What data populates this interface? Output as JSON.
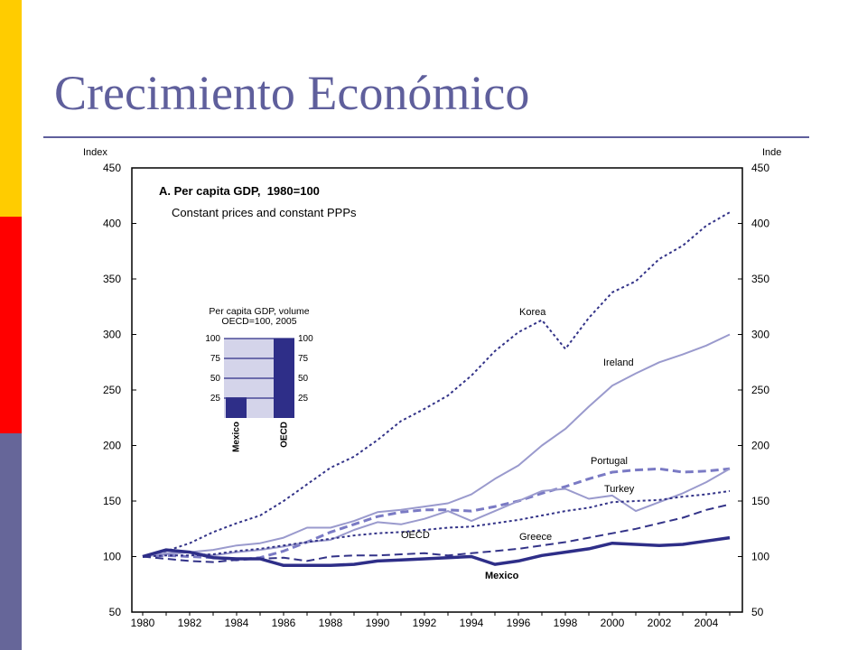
{
  "slide": {
    "title": "Crecimiento Económico",
    "accent_colors": [
      "#ffcc00",
      "#ff0000",
      "#666699"
    ]
  },
  "chart_data": [
    {
      "type": "line",
      "title": "A. Per capita GDP,  1980=100",
      "subtitle": "Constant prices and constant PPPs",
      "ylabel_left": "Index",
      "ylabel_right": "Inde",
      "ylim": [
        50,
        450
      ],
      "yticks": [
        50,
        100,
        150,
        200,
        250,
        300,
        350,
        400,
        450
      ],
      "xlim": [
        1980,
        2005
      ],
      "xticks": [
        1980,
        1982,
        1984,
        1986,
        1988,
        1990,
        1992,
        1994,
        1996,
        1998,
        2000,
        2002,
        2004
      ],
      "grid": false,
      "legend": "inline labels",
      "x": [
        1980,
        1981,
        1982,
        1983,
        1984,
        1985,
        1986,
        1987,
        1988,
        1989,
        1990,
        1991,
        1992,
        1993,
        1994,
        1995,
        1996,
        1997,
        1998,
        1999,
        2000,
        2001,
        2002,
        2003,
        2004,
        2005
      ],
      "series": [
        {
          "name": "Korea",
          "style": "dotted",
          "color": "#333388",
          "width": 2,
          "values": [
            100,
            105,
            112,
            122,
            130,
            137,
            150,
            165,
            180,
            190,
            205,
            222,
            233,
            245,
            263,
            285,
            302,
            313,
            287,
            315,
            338,
            348,
            368,
            380,
            398,
            410
          ]
        },
        {
          "name": "Ireland",
          "style": "solid",
          "color": "#9a9acd",
          "width": 2,
          "values": [
            100,
            102,
            104,
            106,
            110,
            112,
            117,
            126,
            126,
            132,
            140,
            142,
            145,
            148,
            156,
            170,
            182,
            200,
            215,
            235,
            254,
            265,
            275,
            282,
            290,
            300
          ]
        },
        {
          "name": "Portugal",
          "style": "dashed",
          "color": "#7a7ac4",
          "width": 3,
          "values": [
            100,
            101,
            100,
            99,
            97,
            99,
            105,
            113,
            122,
            129,
            136,
            140,
            142,
            142,
            141,
            145,
            150,
            157,
            163,
            170,
            176,
            178,
            179,
            176,
            177,
            179
          ]
        },
        {
          "name": "Turkey",
          "style": "solid",
          "color": "#9a9acd",
          "width": 2,
          "values": [
            100,
            103,
            104,
            101,
            104,
            106,
            109,
            113,
            115,
            124,
            131,
            129,
            134,
            141,
            132,
            141,
            150,
            159,
            161,
            152,
            155,
            141,
            149,
            157,
            167,
            179
          ]
        },
        {
          "name": "OECD",
          "style": "dotted",
          "color": "#333388",
          "width": 2,
          "values": [
            100,
            101,
            101,
            102,
            105,
            107,
            110,
            113,
            116,
            119,
            121,
            122,
            124,
            126,
            127,
            130,
            133,
            137,
            141,
            144,
            149,
            150,
            151,
            154,
            156,
            159
          ]
        },
        {
          "name": "Greece",
          "style": "dashed",
          "color": "#333388",
          "width": 2,
          "values": [
            100,
            98,
            96,
            95,
            97,
            98,
            99,
            96,
            100,
            101,
            101,
            102,
            103,
            101,
            103,
            105,
            107,
            110,
            113,
            117,
            121,
            125,
            130,
            135,
            142,
            147
          ]
        },
        {
          "name": "Mexico",
          "style": "solid",
          "color": "#2e2e88",
          "width": 3.5,
          "values": [
            100,
            106,
            104,
            99,
            98,
            98,
            92,
            92,
            92,
            93,
            96,
            97,
            98,
            99,
            100,
            93,
            96,
            101,
            104,
            107,
            112,
            111,
            110,
            111,
            114,
            117
          ]
        }
      ],
      "annotations": [
        "Korea",
        "Ireland",
        "Portugal",
        "Turkey",
        "OECD",
        "Greece",
        "Mexico"
      ]
    },
    {
      "type": "bar",
      "title": "Per capita GDP, volume\nOECD=100, 2005",
      "categories": [
        "Mexico",
        "OECD"
      ],
      "values": [
        26,
        100
      ],
      "ylim": [
        0,
        100
      ],
      "yticks": [
        25,
        50,
        75,
        100
      ],
      "grid": true
    }
  ]
}
